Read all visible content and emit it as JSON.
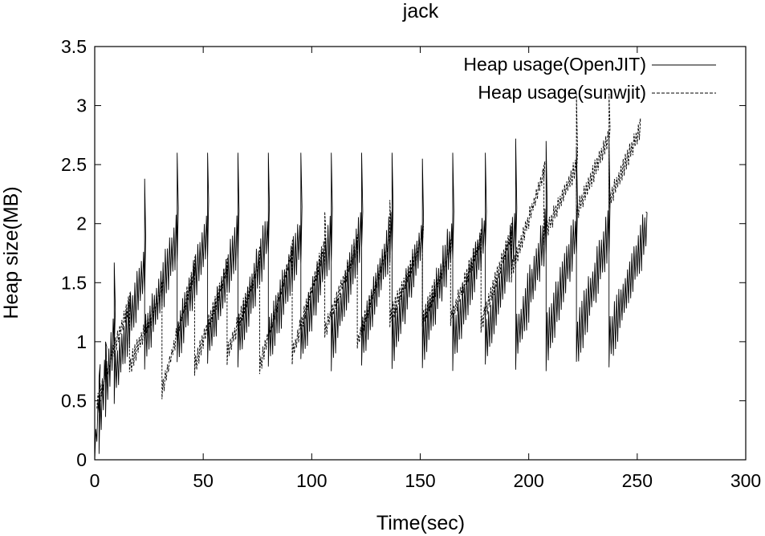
{
  "chart_data": {
    "type": "line",
    "title": "jack",
    "xlabel": "Time(sec)",
    "ylabel": "Heap size(MB)",
    "xlim": [
      0,
      300
    ],
    "ylim": [
      0,
      3.5
    ],
    "xticks": [
      0,
      50,
      100,
      150,
      200,
      250,
      300
    ],
    "yticks": [
      0,
      0.5,
      1,
      1.5,
      2,
      2.5,
      3,
      3.5
    ],
    "xtick_labels": [
      "0",
      "50",
      "100",
      "150",
      "200",
      "250",
      "300"
    ],
    "ytick_labels": [
      "0",
      "0.5",
      "1",
      "1.5",
      "2",
      "2.5",
      "3",
      "3.5"
    ],
    "grid": false,
    "legend_position": "top-right",
    "series": [
      {
        "name": "Heap usage(OpenJIT)",
        "style": "solid",
        "color": "#000000",
        "sawtooth": {
          "t_start": 0,
          "t_end": 254,
          "period": 1.0,
          "amplitude": 0.5,
          "cycles": [
            {
              "t0": 0,
              "t1": 2,
              "base_start": 0.05,
              "base_end": 0.6,
              "spike": 0.7
            },
            {
              "t0": 2,
              "t1": 5,
              "base_start": 0.3,
              "base_end": 0.8,
              "spike": 1.0
            },
            {
              "t0": 5,
              "t1": 9,
              "base_start": 0.6,
              "base_end": 1.1,
              "spike": 1.67
            },
            {
              "t0": 9,
              "t1": 23,
              "base_start": 0.7,
              "base_end": 1.65,
              "spike": 2.38
            },
            {
              "t0": 23,
              "t1": 38,
              "base_start": 1.0,
              "base_end": 1.9,
              "spike": 2.6
            },
            {
              "t0": 38,
              "t1": 52,
              "base_start": 1.0,
              "base_end": 1.95,
              "spike": 2.6
            },
            {
              "t0": 52,
              "t1": 66,
              "base_start": 1.0,
              "base_end": 1.9,
              "spike": 2.6
            },
            {
              "t0": 66,
              "t1": 80,
              "base_start": 1.0,
              "base_end": 1.95,
              "spike": 2.6
            },
            {
              "t0": 80,
              "t1": 95,
              "base_start": 1.0,
              "base_end": 1.9,
              "spike": 2.6
            },
            {
              "t0": 95,
              "t1": 109,
              "base_start": 1.0,
              "base_end": 1.9,
              "spike": 2.6
            },
            {
              "t0": 109,
              "t1": 123,
              "base_start": 1.0,
              "base_end": 1.95,
              "spike": 2.6
            },
            {
              "t0": 123,
              "t1": 137,
              "base_start": 1.0,
              "base_end": 1.95,
              "spike": 2.6
            },
            {
              "t0": 137,
              "t1": 151,
              "base_start": 1.0,
              "base_end": 1.9,
              "spike": 2.55
            },
            {
              "t0": 151,
              "t1": 165,
              "base_start": 1.0,
              "base_end": 1.9,
              "spike": 2.6
            },
            {
              "t0": 165,
              "t1": 180,
              "base_start": 1.0,
              "base_end": 1.95,
              "spike": 2.6
            },
            {
              "t0": 180,
              "t1": 194,
              "base_start": 1.0,
              "base_end": 1.95,
              "spike": 2.72
            },
            {
              "t0": 194,
              "t1": 208,
              "base_start": 1.0,
              "base_end": 1.95,
              "spike": 2.7
            },
            {
              "t0": 208,
              "t1": 222,
              "base_start": 1.0,
              "base_end": 1.95,
              "spike": 2.65
            },
            {
              "t0": 222,
              "t1": 237,
              "base_start": 1.0,
              "base_end": 1.95,
              "spike": 2.7
            },
            {
              "t0": 237,
              "t1": 254,
              "base_start": 1.0,
              "base_end": 1.95,
              "spike": 2.1
            }
          ]
        }
      },
      {
        "name": "Heap usage(sunwjit)",
        "style": "dashed",
        "color": "#000000",
        "sawtooth": {
          "t_start": 1,
          "t_end": 251,
          "period": 1.0,
          "amplitude": 0.2,
          "cycles": [
            {
              "t0": 1,
              "t1": 16,
              "base_start": 0.5,
              "base_end": 1.35,
              "spike": 1.4
            },
            {
              "t0": 16,
              "t1": 31,
              "base_start": 0.8,
              "base_end": 1.45,
              "spike": 1.5
            },
            {
              "t0": 31,
              "t1": 46,
              "base_start": 0.6,
              "base_end": 1.65,
              "spike": 1.7
            },
            {
              "t0": 46,
              "t1": 61,
              "base_start": 0.8,
              "base_end": 1.65,
              "spike": 1.7
            },
            {
              "t0": 61,
              "t1": 76,
              "base_start": 0.9,
              "base_end": 1.7,
              "spike": 1.8
            },
            {
              "t0": 76,
              "t1": 91,
              "base_start": 0.8,
              "base_end": 1.8,
              "spike": 1.85
            },
            {
              "t0": 91,
              "t1": 106,
              "base_start": 0.9,
              "base_end": 1.85,
              "spike": 2.1
            },
            {
              "t0": 106,
              "t1": 121,
              "base_start": 1.1,
              "base_end": 1.85,
              "spike": 1.9
            },
            {
              "t0": 121,
              "t1": 136,
              "base_start": 1.0,
              "base_end": 1.9,
              "spike": 2.2
            },
            {
              "t0": 136,
              "t1": 151,
              "base_start": 1.2,
              "base_end": 1.9,
              "spike": 1.95
            },
            {
              "t0": 151,
              "t1": 164,
              "base_start": 1.2,
              "base_end": 1.8,
              "spike": 1.85
            },
            {
              "t0": 164,
              "t1": 178,
              "base_start": 1.2,
              "base_end": 1.9,
              "spike": 1.95
            },
            {
              "t0": 178,
              "t1": 192,
              "base_start": 1.15,
              "base_end": 1.95,
              "spike": 2.0
            },
            {
              "t0": 192,
              "t1": 207,
              "base_start": 1.6,
              "base_end": 2.45,
              "spike": 2.5
            },
            {
              "t0": 207,
              "t1": 222,
              "base_start": 1.9,
              "base_end": 2.5,
              "spike": 3.1
            },
            {
              "t0": 222,
              "t1": 237,
              "base_start": 2.1,
              "base_end": 2.75,
              "spike": 3.1
            },
            {
              "t0": 237,
              "t1": 251,
              "base_start": 2.2,
              "base_end": 2.8,
              "spike": 2.85
            }
          ]
        }
      }
    ]
  }
}
